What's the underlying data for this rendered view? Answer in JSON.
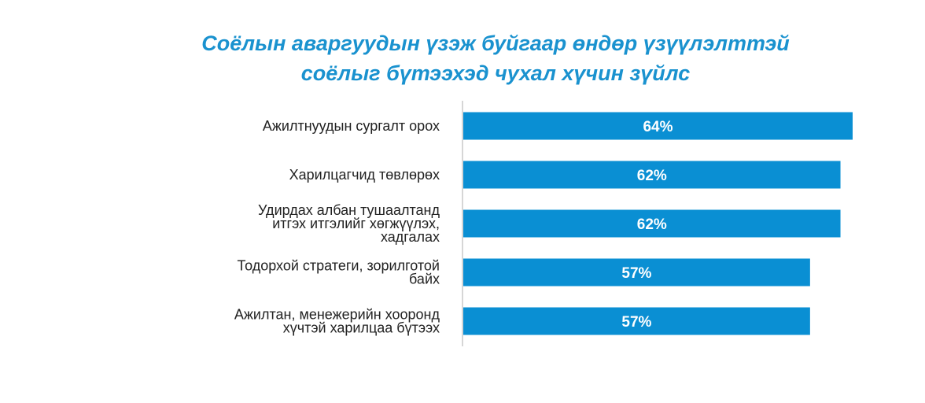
{
  "chart_data": {
    "type": "bar",
    "orientation": "horizontal",
    "title_lines": [
      "Соёлын аваргуудын үзэж буйгаар өндөр үзүүлэлттэй",
      "соёлыг бүтээхэд чухал хүчин зүйлс"
    ],
    "categories": [
      [
        "Ажилтнуудын сургалт орох"
      ],
      [
        "Харилцагчид төвлөрөх"
      ],
      [
        "Удирдах албан тушаалтанд",
        "итгэх итгэлийг хөгжүүлэх,",
        "хадгалах"
      ],
      [
        "Тодорхой стратеги, зорилготой",
        "байх"
      ],
      [
        "Ажилтан, менежерийн хооронд",
        "хүчтэй харилцаа бүтээх"
      ]
    ],
    "values": [
      64,
      62,
      62,
      57,
      57
    ],
    "value_labels": [
      "64%",
      "62%",
      "62%",
      "57%",
      "57%"
    ],
    "unit": "%",
    "grid": false,
    "legend": "none",
    "bar_color": "#0a8fd3",
    "title_color": "#1a92cf",
    "axis_color": "#c8c8c8"
  }
}
